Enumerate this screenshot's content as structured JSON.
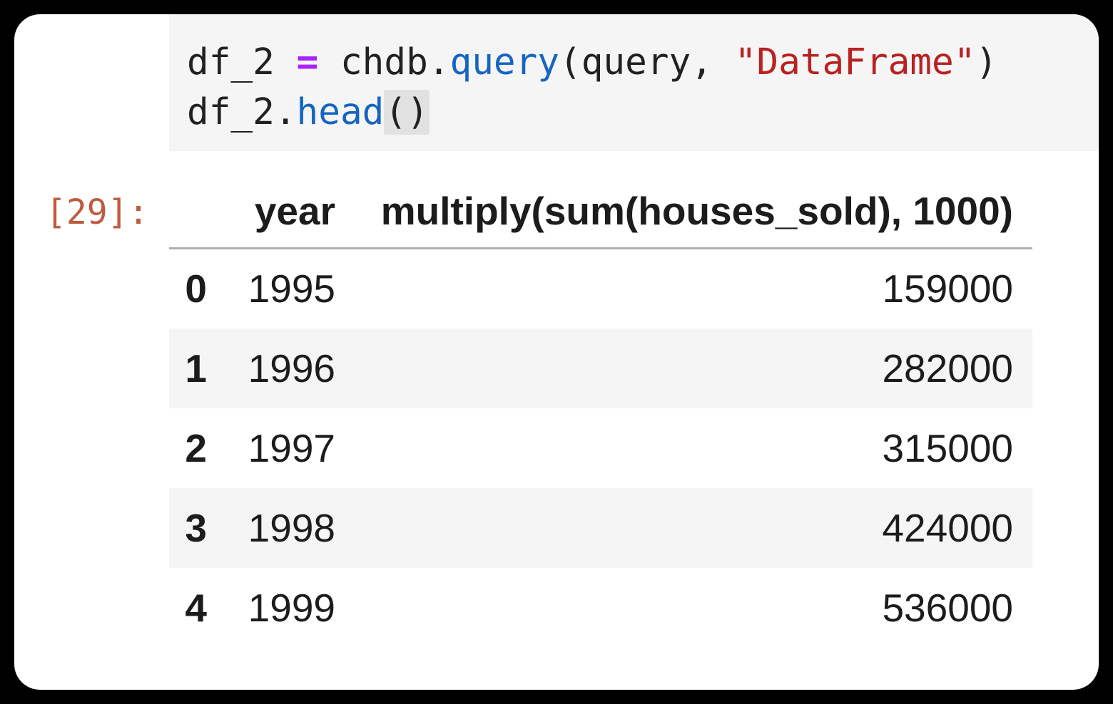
{
  "colors": {
    "frame": "#000000",
    "panel": "#ffffff",
    "cell_bg": "#f5f5f5",
    "stripe_bg": "#f5f5f5",
    "header_rule": "#b0b0b0",
    "text": "#1c1c1c",
    "code_default": "#212121",
    "code_operator": "#aa22ff",
    "code_function": "#1665c0",
    "code_string": "#ba2121",
    "bracket_highlight": "#e1e1e1",
    "out_prompt": "#bf5b3e"
  },
  "code_cell": {
    "lines": [
      {
        "tokens": [
          {
            "text": "df_2 ",
            "type": "default"
          },
          {
            "text": "=",
            "type": "operator"
          },
          {
            "text": " chdb.",
            "type": "default"
          },
          {
            "text": "query",
            "type": "function"
          },
          {
            "text": "(query, ",
            "type": "default"
          },
          {
            "text": "\"DataFrame\"",
            "type": "string"
          },
          {
            "text": ")",
            "type": "default"
          }
        ]
      },
      {
        "tokens": [
          {
            "text": "df_2.",
            "type": "default"
          },
          {
            "text": "head",
            "type": "function"
          },
          {
            "text": "()",
            "type": "bracket-highlight"
          }
        ]
      }
    ]
  },
  "output": {
    "prompt": "[29]:",
    "table": {
      "index_header": "",
      "columns": [
        "year",
        "multiply(sum(houses_sold), 1000)"
      ],
      "rows": [
        {
          "index": "0",
          "year": "1995",
          "value": "159000"
        },
        {
          "index": "1",
          "year": "1996",
          "value": "282000"
        },
        {
          "index": "2",
          "year": "1997",
          "value": "315000"
        },
        {
          "index": "3",
          "year": "1998",
          "value": "424000"
        },
        {
          "index": "4",
          "year": "1999",
          "value": "536000"
        }
      ]
    }
  }
}
